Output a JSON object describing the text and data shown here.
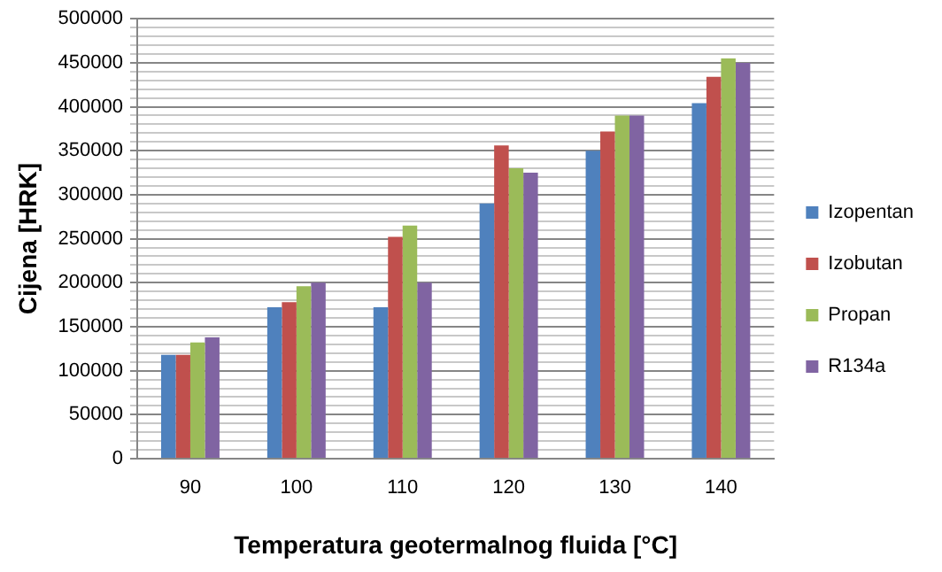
{
  "chart_data": {
    "type": "bar",
    "xlabel": "Temperatura geotermalnog fluida [°C]",
    "ylabel": "Cijena [HRK]",
    "categories": [
      "90",
      "100",
      "110",
      "120",
      "130",
      "140"
    ],
    "series": [
      {
        "name": "Izopentan",
        "color": "#4f81bd",
        "values": [
          118000,
          172000,
          172000,
          290000,
          350000,
          404000
        ]
      },
      {
        "name": "Izobutan",
        "color": "#c0504d",
        "values": [
          118000,
          178000,
          252000,
          356000,
          372000,
          434000
        ]
      },
      {
        "name": "Propan",
        "color": "#9bbb59",
        "values": [
          132000,
          196000,
          265000,
          330000,
          390000,
          455000
        ]
      },
      {
        "name": "R134a",
        "color": "#8064a2",
        "values": [
          138000,
          200000,
          200000,
          325000,
          390000,
          450000
        ]
      }
    ],
    "ylim": [
      0,
      500000
    ],
    "yticks": [
      0,
      {
        "value": 10000,
        "label": null
      },
      {
        "value": 20000,
        "label": null
      },
      {
        "value": 30000,
        "label": null
      },
      {
        "value": 40000,
        "label": null
      },
      50000,
      {
        "value": 60000,
        "label": null
      },
      {
        "value": 70000,
        "label": null
      },
      {
        "value": 80000,
        "label": null
      },
      {
        "value": 90000,
        "label": null
      },
      100000,
      {
        "value": 110000,
        "label": null
      },
      {
        "value": 120000,
        "label": null
      },
      {
        "value": 130000,
        "label": null
      },
      {
        "value": 140000,
        "label": null
      },
      150000,
      {
        "value": 160000,
        "label": null
      },
      {
        "value": 170000,
        "label": null
      },
      {
        "value": 180000,
        "label": null
      },
      {
        "value": 190000,
        "label": null
      },
      200000,
      {
        "value": 210000,
        "label": null
      },
      {
        "value": 220000,
        "label": null
      },
      {
        "value": 230000,
        "label": null
      },
      {
        "value": 240000,
        "label": null
      },
      250000,
      {
        "value": 260000,
        "label": null
      },
      {
        "value": 270000,
        "label": null
      },
      {
        "value": 280000,
        "label": null
      },
      {
        "value": 290000,
        "label": null
      },
      300000,
      {
        "value": 310000,
        "label": null
      },
      {
        "value": 320000,
        "label": null
      },
      {
        "value": 330000,
        "label": null
      },
      {
        "value": 340000,
        "label": null
      },
      350000,
      {
        "value": 360000,
        "label": null
      },
      {
        "value": 370000,
        "label": null
      },
      {
        "value": 380000,
        "label": null
      },
      {
        "value": 390000,
        "label": null
      },
      400000,
      {
        "value": 410000,
        "label": null
      },
      {
        "value": 420000,
        "label": null
      },
      {
        "value": 430000,
        "label": null
      },
      {
        "value": 440000,
        "label": null
      },
      450000,
      {
        "value": 460000,
        "label": null
      },
      {
        "value": 470000,
        "label": null
      },
      {
        "value": 480000,
        "label": null
      },
      {
        "value": 490000,
        "label": null
      },
      500000
    ],
    "grid": "y",
    "legend": "right"
  }
}
